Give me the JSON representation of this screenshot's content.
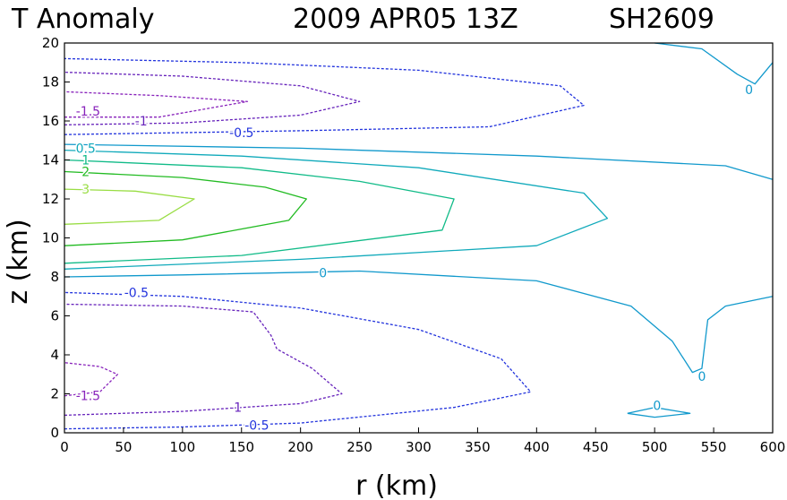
{
  "chart_data": {
    "type": "contour",
    "title": {
      "left": "T Anomaly",
      "date": "2009 APR05 13Z",
      "storm_id": "SH2609"
    },
    "xlabel": "r (km)",
    "ylabel": "z (km)",
    "xlim": [
      0,
      600
    ],
    "ylim": [
      0,
      20
    ],
    "xticks": [
      0,
      50,
      100,
      150,
      200,
      250,
      300,
      350,
      400,
      450,
      500,
      550,
      600
    ],
    "yticks": [
      0,
      2,
      4,
      6,
      8,
      10,
      12,
      14,
      16,
      18,
      20
    ],
    "levels": [
      -1.5,
      -1,
      -0.5,
      0,
      0.5,
      1,
      2,
      3
    ],
    "contours": [
      {
        "level": 3,
        "label": "3",
        "color": "#99dd44",
        "dashed": false,
        "points": [
          [
            0,
            10.7
          ],
          [
            80,
            10.9
          ],
          [
            110,
            12.0
          ],
          [
            60,
            12.4
          ],
          [
            0,
            12.5
          ]
        ]
      },
      {
        "level": 2,
        "label": "2",
        "color": "#22bb22",
        "dashed": false,
        "points": [
          [
            0,
            9.6
          ],
          [
            100,
            9.9
          ],
          [
            190,
            10.9
          ],
          [
            205,
            12.0
          ],
          [
            170,
            12.6
          ],
          [
            100,
            13.1
          ],
          [
            0,
            13.4
          ]
        ]
      },
      {
        "level": 1,
        "label": "1",
        "color": "#11bb88",
        "dashed": false,
        "points": [
          [
            0,
            8.7
          ],
          [
            150,
            9.1
          ],
          [
            320,
            10.4
          ],
          [
            330,
            12.0
          ],
          [
            250,
            12.9
          ],
          [
            150,
            13.6
          ],
          [
            0,
            14.0
          ]
        ]
      },
      {
        "level": 0.5,
        "label": "0.5",
        "color": "#11aabb",
        "dashed": false,
        "points": [
          [
            0,
            8.4
          ],
          [
            200,
            8.9
          ],
          [
            400,
            9.6
          ],
          [
            460,
            11.0
          ],
          [
            440,
            12.3
          ],
          [
            300,
            13.6
          ],
          [
            150,
            14.2
          ],
          [
            0,
            14.5
          ]
        ]
      },
      {
        "level": 0,
        "label": "0",
        "color": "#1199cc",
        "dashed": false,
        "points": [
          [
            0,
            8.0
          ],
          [
            100,
            8.1
          ],
          [
            250,
            8.3
          ],
          [
            400,
            7.8
          ],
          [
            480,
            6.5
          ],
          [
            515,
            4.7
          ],
          [
            532,
            3.1
          ],
          [
            540,
            3.3
          ],
          [
            545,
            5.8
          ],
          [
            560,
            6.5
          ],
          [
            600,
            7.0
          ]
        ]
      },
      {
        "level": 0,
        "label": "0",
        "color": "#1199cc",
        "dashed": false,
        "points": [
          [
            0,
            14.8
          ],
          [
            200,
            14.6
          ],
          [
            400,
            14.2
          ],
          [
            560,
            13.7
          ],
          [
            600,
            13.0
          ]
        ]
      },
      {
        "level": 0,
        "label": "0",
        "color": "#1199cc",
        "dashed": false,
        "points": [
          [
            500,
            20.0
          ],
          [
            540,
            19.7
          ],
          [
            570,
            18.4
          ],
          [
            585,
            17.9
          ],
          [
            600,
            19.0
          ]
        ]
      },
      {
        "level": 0,
        "label": "0",
        "color": "#1199cc",
        "dashed": false,
        "points": [
          [
            477,
            1.0
          ],
          [
            500,
            1.3
          ],
          [
            530,
            1.0
          ],
          [
            500,
            0.8
          ],
          [
            477,
            1.0
          ]
        ]
      },
      {
        "level": -0.5,
        "label": "-0.5",
        "color": "#2233dd",
        "dashed": true,
        "points": [
          [
            0,
            0.2
          ],
          [
            100,
            0.3
          ],
          [
            200,
            0.5
          ],
          [
            330,
            1.3
          ],
          [
            395,
            2.1
          ],
          [
            370,
            3.8
          ],
          [
            300,
            5.3
          ],
          [
            200,
            6.4
          ],
          [
            100,
            7.0
          ],
          [
            0,
            7.2
          ]
        ]
      },
      {
        "level": -0.5,
        "label": "-0.5",
        "color": "#2233dd",
        "dashed": true,
        "points": [
          [
            0,
            15.3
          ],
          [
            200,
            15.5
          ],
          [
            360,
            15.7
          ],
          [
            440,
            16.8
          ],
          [
            420,
            17.8
          ],
          [
            300,
            18.6
          ],
          [
            150,
            19.0
          ],
          [
            0,
            19.2
          ]
        ]
      },
      {
        "level": -1,
        "label": "-1",
        "color": "#6622bb",
        "dashed": true,
        "points": [
          [
            0,
            0.9
          ],
          [
            100,
            1.1
          ],
          [
            200,
            1.5
          ],
          [
            235,
            2.0
          ],
          [
            210,
            3.3
          ],
          [
            180,
            4.3
          ],
          [
            175,
            5.0
          ],
          [
            160,
            6.2
          ],
          [
            100,
            6.5
          ],
          [
            0,
            6.6
          ]
        ]
      },
      {
        "level": -1,
        "label": "-1",
        "color": "#6622bb",
        "dashed": true,
        "points": [
          [
            0,
            15.8
          ],
          [
            100,
            15.9
          ],
          [
            200,
            16.3
          ],
          [
            250,
            17.0
          ],
          [
            200,
            17.8
          ],
          [
            100,
            18.3
          ],
          [
            0,
            18.5
          ]
        ]
      },
      {
        "level": -1.5,
        "label": "-1.5",
        "color": "#8822bb",
        "dashed": true,
        "points": [
          [
            0,
            1.9
          ],
          [
            30,
            2.1
          ],
          [
            45,
            3.0
          ],
          [
            30,
            3.4
          ],
          [
            0,
            3.6
          ]
        ]
      },
      {
        "level": -1.5,
        "label": "-1.5",
        "color": "#8822bb",
        "dashed": true,
        "points": [
          [
            0,
            16.2
          ],
          [
            80,
            16.2
          ],
          [
            155,
            17.0
          ],
          [
            80,
            17.3
          ],
          [
            0,
            17.5
          ]
        ]
      }
    ],
    "contour_labels": [
      {
        "text": "3",
        "color": "#99dd44",
        "x": 18,
        "y": 12.5
      },
      {
        "text": "2",
        "color": "#22bb22",
        "x": 18,
        "y": 13.4
      },
      {
        "text": "1",
        "color": "#11bb88",
        "x": 18,
        "y": 14.0
      },
      {
        "text": "0.5",
        "color": "#11aabb",
        "x": 18,
        "y": 14.6
      },
      {
        "text": "0",
        "color": "#1199cc",
        "x": 219,
        "y": 8.2
      },
      {
        "text": "0",
        "color": "#1199cc",
        "x": 580,
        "y": 17.6
      },
      {
        "text": "0",
        "color": "#1199cc",
        "x": 540,
        "y": 2.9
      },
      {
        "text": "0",
        "color": "#1199cc",
        "x": 502,
        "y": 1.4
      },
      {
        "text": "-0.5",
        "color": "#2233dd",
        "x": 61,
        "y": 7.2
      },
      {
        "text": "-0.5",
        "color": "#2233dd",
        "x": 150,
        "y": 15.4
      },
      {
        "text": "-0.5",
        "color": "#2233dd",
        "x": 163,
        "y": 0.4
      },
      {
        "text": "-1",
        "color": "#6622bb",
        "x": 65,
        "y": 16.0
      },
      {
        "text": "-1",
        "color": "#6622bb",
        "x": 145,
        "y": 1.3
      },
      {
        "text": "-1.5",
        "color": "#8822bb",
        "x": 20,
        "y": 16.5
      },
      {
        "text": "-1.5",
        "color": "#8822bb",
        "x": 20,
        "y": 1.9
      }
    ]
  }
}
